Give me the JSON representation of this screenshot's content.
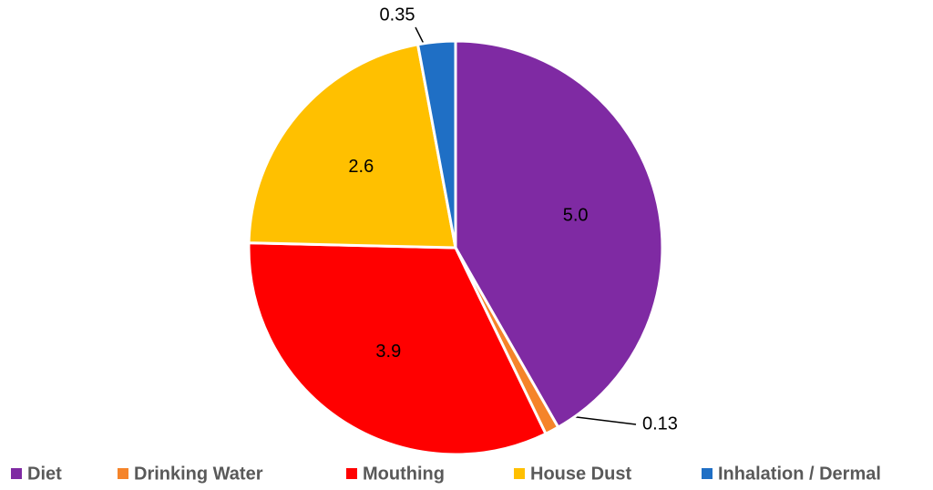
{
  "chart_data": {
    "type": "pie",
    "categories": [
      "Diet",
      "Drinking Water",
      "Mouthing",
      "House Dust",
      "Inhalation / Dermal"
    ],
    "values": [
      5.0,
      0.13,
      3.9,
      2.6,
      0.35
    ],
    "value_labels": [
      "5.0",
      "0.13",
      "3.9",
      "2.6",
      "0.35"
    ],
    "colors": [
      "#7f2aa3",
      "#f5842a",
      "#ff0000",
      "#ffc000",
      "#1f6fc5"
    ],
    "legend": "bottom"
  }
}
